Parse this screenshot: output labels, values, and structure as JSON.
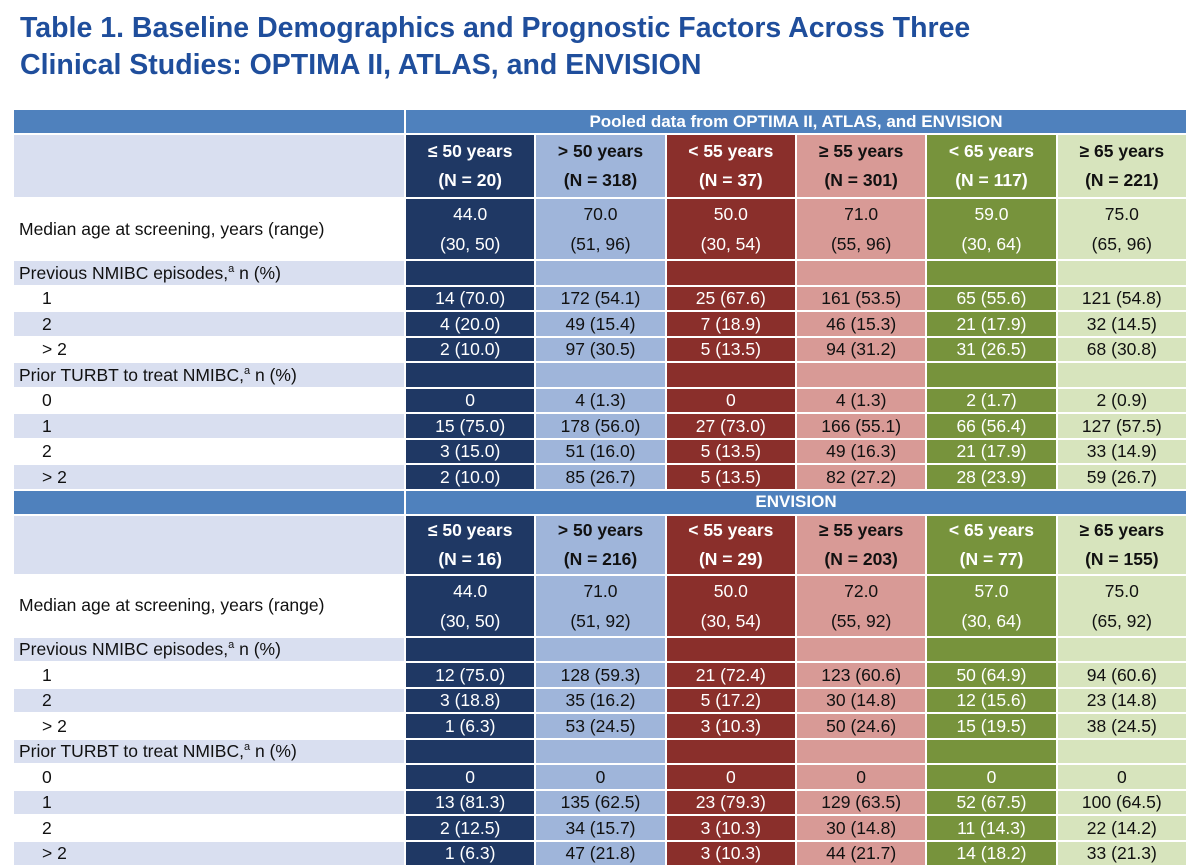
{
  "title_lines": [
    "Table 1. Baseline Demographics and Prognostic Factors Across Three",
    "Clinical Studies: OPTIMA II, ATLAS, and ENVISION"
  ],
  "sections": [
    {
      "heading": "Pooled data from OPTIMA II, ATLAS, and ENVISION",
      "columns": [
        {
          "label": "≤ 50 years",
          "n": "(N = 20)"
        },
        {
          "label": "> 50 years",
          "n": "(N = 318)"
        },
        {
          "label": "< 55 years",
          "n": "(N = 37)"
        },
        {
          "label": "≥ 55 years",
          "n": "(N = 301)"
        },
        {
          "label": "< 65 years",
          "n": "(N = 117)"
        },
        {
          "label": "≥ 65 years",
          "n": "(N = 221)"
        }
      ],
      "rows": [
        {
          "label": "Median age at screening, years (range)",
          "cells": [
            [
              "44.0",
              "(30, 50)"
            ],
            [
              "70.0",
              "(51, 96)"
            ],
            [
              "50.0",
              "(30, 54)"
            ],
            [
              "71.0",
              "(55, 96)"
            ],
            [
              "59.0",
              "(30, 64)"
            ],
            [
              "75.0",
              "(65, 96)"
            ]
          ]
        },
        {
          "label": {
            "text": "Previous NMIBC episodes,",
            "sup": "a",
            "after": " n (%)"
          }
        },
        {
          "label": "1",
          "cells": [
            "14 (70.0)",
            "172 (54.1)",
            "25 (67.6)",
            "161 (53.5)",
            "65 (55.6)",
            "121 (54.8)"
          ]
        },
        {
          "label": "2",
          "cells": [
            "4 (20.0)",
            "49 (15.4)",
            "7 (18.9)",
            "46 (15.3)",
            "21 (17.9)",
            "32 (14.5)"
          ]
        },
        {
          "label": "> 2",
          "cells": [
            "2 (10.0)",
            "97 (30.5)",
            "5 (13.5)",
            "94 (31.2)",
            "31 (26.5)",
            "68 (30.8)"
          ]
        },
        {
          "label": {
            "text": "Prior TURBT to treat NMIBC,",
            "sup": "a",
            "after": " n (%)"
          }
        },
        {
          "label": "0",
          "cells": [
            "0",
            "4 (1.3)",
            "0",
            "4 (1.3)",
            "2 (1.7)",
            "2 (0.9)"
          ]
        },
        {
          "label": "1",
          "cells": [
            "15 (75.0)",
            "178 (56.0)",
            "27 (73.0)",
            "166 (55.1)",
            "66 (56.4)",
            "127 (57.5)"
          ]
        },
        {
          "label": "2",
          "cells": [
            "3 (15.0)",
            "51 (16.0)",
            "5 (13.5)",
            "49 (16.3)",
            "21 (17.9)",
            "33 (14.9)"
          ]
        },
        {
          "label": "> 2",
          "cells": [
            "2 (10.0)",
            "85 (26.7)",
            "5 (13.5)",
            "82 (27.2)",
            "28 (23.9)",
            "59 (26.7)"
          ]
        }
      ]
    },
    {
      "heading": "ENVISION",
      "columns": [
        {
          "label": "≤ 50 years",
          "n": "(N = 16)"
        },
        {
          "label": "> 50 years",
          "n": "(N = 216)"
        },
        {
          "label": "< 55 years",
          "n": "(N = 29)"
        },
        {
          "label": "≥ 55 years",
          "n": "(N = 203)"
        },
        {
          "label": "< 65 years",
          "n": "(N = 77)"
        },
        {
          "label": "≥ 65 years",
          "n": "(N = 155)"
        }
      ],
      "rows": [
        {
          "label": "Median age at screening, years (range)",
          "cells": [
            [
              "44.0",
              "(30, 50)"
            ],
            [
              "71.0",
              "(51, 92)"
            ],
            [
              "50.0",
              "(30, 54)"
            ],
            [
              "72.0",
              "(55, 92)"
            ],
            [
              "57.0",
              "(30, 64)"
            ],
            [
              "75.0",
              "(65, 92)"
            ]
          ]
        },
        {
          "label": {
            "text": "Previous NMIBC episodes,",
            "sup": "a",
            "after": " n (%)"
          }
        },
        {
          "label": "1",
          "cells": [
            "12 (75.0)",
            "128 (59.3)",
            "21 (72.4)",
            "123 (60.6)",
            "50 (64.9)",
            "94 (60.6)"
          ]
        },
        {
          "label": "2",
          "cells": [
            "3 (18.8)",
            "35 (16.2)",
            "5 (17.2)",
            "30 (14.8)",
            "12 (15.6)",
            "23 (14.8)"
          ]
        },
        {
          "label": "> 2",
          "cells": [
            "1 (6.3)",
            "53 (24.5)",
            "3 (10.3)",
            "50 (24.6)",
            "15 (19.5)",
            "38 (24.5)"
          ]
        },
        {
          "label": {
            "text": "Prior TURBT to treat NMIBC,",
            "sup": "a",
            "after": " n (%)"
          }
        },
        {
          "label": "0",
          "cells": [
            "0",
            "0",
            "0",
            "0",
            "0",
            "0"
          ]
        },
        {
          "label": "1",
          "cells": [
            "13 (81.3)",
            "135 (62.5)",
            "23 (79.3)",
            "129 (63.5)",
            "52 (67.5)",
            "100 (64.5)"
          ]
        },
        {
          "label": "2",
          "cells": [
            "2 (12.5)",
            "34 (15.7)",
            "3 (10.3)",
            "30 (14.8)",
            "11 (14.3)",
            "22 (14.2)"
          ]
        },
        {
          "label": "> 2",
          "cells": [
            "1 (6.3)",
            "47 (21.8)",
            "3 (10.3)",
            "44 (21.7)",
            "14 (18.2)",
            "33 (21.3)"
          ]
        }
      ]
    }
  ]
}
